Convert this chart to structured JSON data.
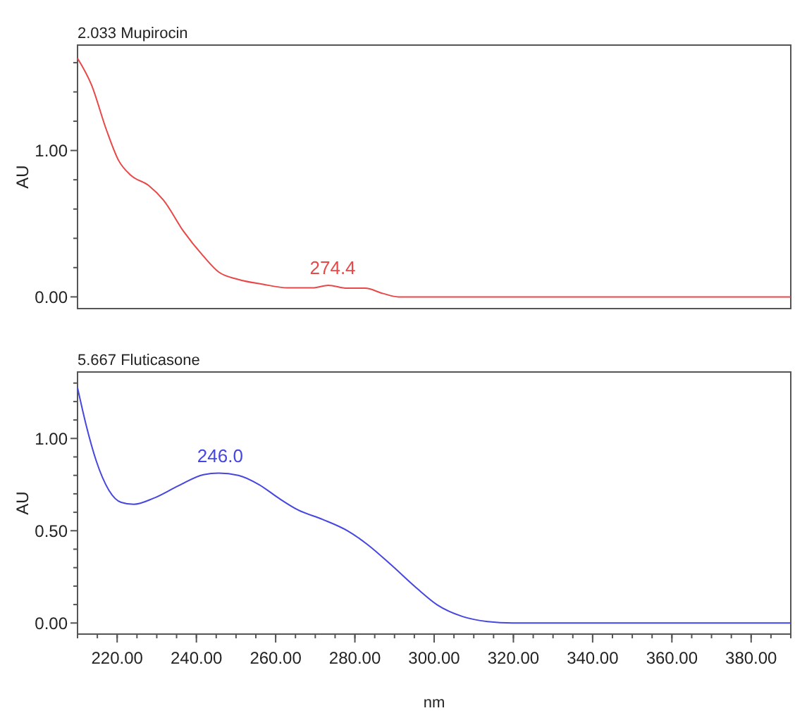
{
  "chart_data": [
    {
      "type": "line",
      "title": "2.033 Mupirocin",
      "ylabel": "AU",
      "xlim": [
        210,
        390
      ],
      "ylim": [
        -0.08,
        1.72
      ],
      "tick_labels": "y",
      "grid": false,
      "marker": "none",
      "line_style": "solid",
      "yticks": [
        {
          "value": 0,
          "label": "0.00"
        },
        {
          "value": 0.2,
          "label": null
        },
        {
          "value": 0.4,
          "label": null
        },
        {
          "value": 0.6,
          "label": null
        },
        {
          "value": 0.8,
          "label": null
        },
        {
          "value": 1,
          "label": "1.00"
        },
        {
          "value": 1.2,
          "label": null
        },
        {
          "value": 1.4,
          "label": null
        },
        {
          "value": 1.6,
          "label": null
        }
      ],
      "x": [
        210,
        213.5,
        217.3,
        220.4,
        223.5,
        228,
        231.7,
        236.7,
        241.7,
        245.6,
        250.5,
        256.8,
        263,
        269.4,
        273.3,
        278,
        282.6,
        287,
        291,
        300,
        320,
        340,
        360,
        380,
        390
      ],
      "series": [
        {
          "color": "#e84848",
          "values": [
            1.63,
            1.45,
            1.14,
            0.93,
            0.83,
            0.76,
            0.66,
            0.45,
            0.28,
            0.17,
            0.12,
            0.086,
            0.062,
            0.062,
            0.079,
            0.059,
            0.059,
            0.024,
            0,
            0,
            0,
            0,
            0,
            0,
            0
          ]
        }
      ],
      "annotations": [
        {
          "text": "274.4",
          "x": 274.4,
          "y": 0.079
        }
      ]
    },
    {
      "type": "line",
      "title": "5.667 Fluticasone",
      "ylabel": "AU",
      "xlabel": "nm",
      "xlim": [
        210,
        390
      ],
      "ylim": [
        -0.06,
        1.36
      ],
      "grid": false,
      "marker": "none",
      "line_style": "solid",
      "xticks": [
        {
          "value": 220,
          "label": "220.00"
        },
        {
          "value": 240,
          "label": "240.00"
        },
        {
          "value": 260,
          "label": "260.00"
        },
        {
          "value": 280,
          "label": "280.00"
        },
        {
          "value": 300,
          "label": "300.00"
        },
        {
          "value": 320,
          "label": "320.00"
        },
        {
          "value": 340,
          "label": "340.00"
        },
        {
          "value": 360,
          "label": "360.00"
        },
        {
          "value": 380,
          "label": "380.00"
        }
      ],
      "yticks": [
        {
          "value": 0,
          "label": "0.00"
        },
        {
          "value": 0.1,
          "label": null
        },
        {
          "value": 0.2,
          "label": null
        },
        {
          "value": 0.3,
          "label": null
        },
        {
          "value": 0.4,
          "label": null
        },
        {
          "value": 0.5,
          "label": "0.50"
        },
        {
          "value": 0.6,
          "label": null
        },
        {
          "value": 0.7,
          "label": null
        },
        {
          "value": 0.8,
          "label": null
        },
        {
          "value": 0.9,
          "label": null
        },
        {
          "value": 1,
          "label": "1.00"
        },
        {
          "value": 1.1,
          "label": null
        },
        {
          "value": 1.2,
          "label": null
        },
        {
          "value": 1.3,
          "label": null
        }
      ],
      "x": [
        210,
        212.2,
        214.7,
        217.9,
        221,
        224.2,
        229.2,
        235.5,
        241.8,
        245.6,
        250.6,
        255.8,
        260.8,
        265.6,
        271.9,
        278.2,
        283.2,
        289.5,
        295.8,
        300.8,
        307.2,
        313.5,
        319.8,
        340,
        360,
        380,
        390
      ],
      "series": [
        {
          "color": "#4646e0",
          "values": [
            1.275,
            1.07,
            0.88,
            0.72,
            0.654,
            0.643,
            0.676,
            0.744,
            0.804,
            0.812,
            0.8,
            0.75,
            0.676,
            0.613,
            0.561,
            0.499,
            0.425,
            0.308,
            0.185,
            0.098,
            0.035,
            0.008,
            0,
            0,
            0,
            0,
            0
          ]
        }
      ],
      "annotations": [
        {
          "text": "246.0",
          "x": 246,
          "y": 0.812
        }
      ]
    }
  ]
}
